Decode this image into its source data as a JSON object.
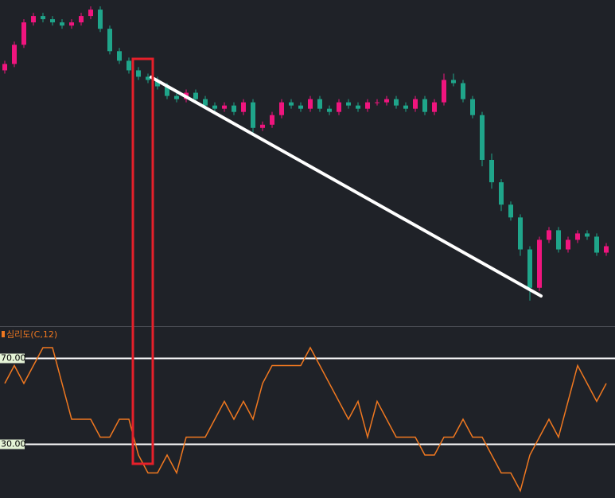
{
  "chart_data": [
    {
      "type": "candlestick",
      "up_color": "#f0157e",
      "down_color": "#1fa58a",
      "ylim": [
        0,
        102
      ],
      "open": [
        80,
        82,
        88,
        95,
        97,
        96,
        95,
        94,
        95,
        97,
        99,
        93,
        86,
        83,
        80,
        78,
        77,
        75,
        72,
        71,
        73,
        71,
        69,
        68,
        69,
        67,
        70,
        62,
        63,
        66,
        70,
        69,
        68,
        71,
        68,
        67,
        70,
        69,
        68,
        70,
        70,
        71,
        69,
        68,
        71,
        67,
        70,
        77,
        76,
        71,
        66,
        52,
        45,
        38,
        34,
        24,
        12,
        27,
        30,
        24,
        27,
        29,
        28,
        23
      ],
      "high": [
        83,
        89,
        96,
        98,
        98,
        97,
        96,
        96,
        98,
        100,
        100,
        94,
        87,
        84,
        81,
        79,
        78,
        76,
        73,
        74,
        74,
        72,
        70,
        70,
        70,
        71,
        71,
        64,
        67,
        71,
        71,
        70,
        72,
        72,
        69,
        71,
        71,
        70,
        71,
        71,
        72,
        72,
        70,
        72,
        72,
        71,
        79,
        79,
        77,
        72,
        67,
        54,
        46,
        39,
        35,
        25,
        28,
        31,
        31,
        28,
        30,
        30,
        29,
        26
      ],
      "low": [
        79,
        81,
        87,
        94,
        95,
        94,
        93,
        93,
        94,
        96,
        92,
        85,
        82,
        79,
        77,
        76,
        74,
        71,
        70,
        70,
        70,
        68,
        67,
        67,
        66,
        66,
        60,
        61,
        62,
        65,
        68,
        67,
        67,
        67,
        66,
        66,
        68,
        67,
        67,
        69,
        69,
        68,
        67,
        67,
        66,
        66,
        69,
        75,
        70,
        65,
        50,
        43,
        36,
        33,
        22,
        8,
        11,
        26,
        23,
        23,
        26,
        27,
        22,
        22
      ],
      "close": [
        82,
        88,
        95,
        97,
        96,
        95,
        94,
        95,
        97,
        99,
        93,
        86,
        83,
        80,
        78,
        77,
        75,
        72,
        71,
        73,
        71,
        69,
        68,
        69,
        67,
        70,
        62,
        63,
        66,
        70,
        69,
        68,
        71,
        68,
        67,
        70,
        69,
        68,
        70,
        70,
        71,
        69,
        68,
        71,
        67,
        70,
        77,
        76,
        71,
        66,
        52,
        45,
        38,
        34,
        24,
        12,
        27,
        30,
        24,
        27,
        29,
        28,
        23,
        25
      ]
    },
    {
      "type": "line",
      "title": "심리도(C,12)",
      "color": "#f07820",
      "ylim": [
        5,
        85
      ],
      "yticks": [
        {
          "value": 70,
          "label": "70.00"
        },
        {
          "value": 30,
          "label": "30.00"
        }
      ],
      "values": [
        58.33,
        66.67,
        58.33,
        66.67,
        75,
        75,
        58.33,
        41.67,
        41.67,
        41.67,
        33.33,
        33.33,
        41.67,
        41.67,
        25,
        16.67,
        16.67,
        25,
        16.67,
        33.33,
        33.33,
        33.33,
        41.67,
        50,
        41.67,
        50,
        41.67,
        58.33,
        66.67,
        66.67,
        66.67,
        66.67,
        75,
        66.67,
        58.33,
        50,
        41.67,
        50,
        33.33,
        50,
        41.67,
        33.33,
        33.33,
        33.33,
        25,
        25,
        33.33,
        33.33,
        41.67,
        33.33,
        33.33,
        25,
        16.67,
        16.67,
        8.33,
        25,
        33.33,
        41.67,
        33.33,
        50,
        66.67,
        58.33,
        50,
        58.33
      ]
    }
  ]
}
